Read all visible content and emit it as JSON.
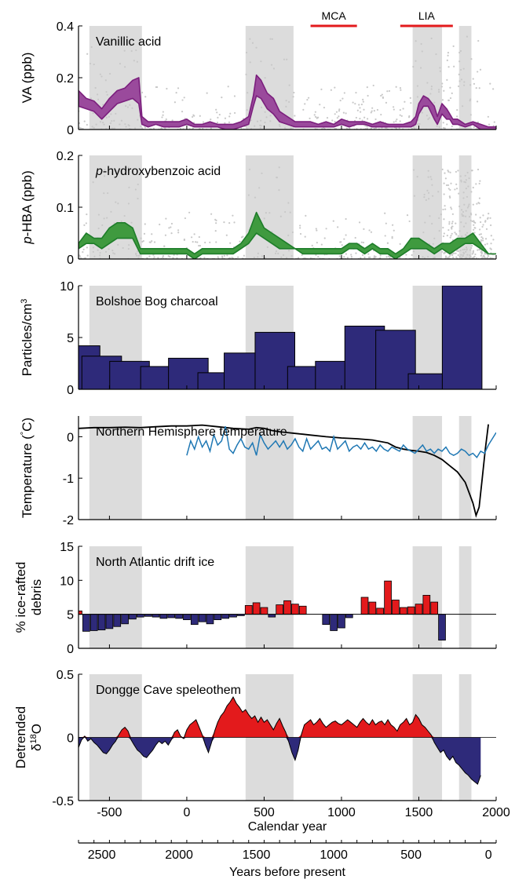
{
  "x_axis": {
    "label": "Calendar year",
    "range": [
      -700,
      2000
    ],
    "ticks": [
      -500,
      0,
      500,
      1000,
      1500,
      2000
    ],
    "tick_labels": [
      "-500",
      "0",
      "500",
      "1000",
      "1500",
      "2000"
    ]
  },
  "bp_axis": {
    "label": "Years before present",
    "ticks": [
      2500,
      2000,
      1500,
      1000,
      500,
      0
    ],
    "tick_labels": [
      "2500",
      "2000",
      "1500",
      "1000",
      "500",
      "0"
    ],
    "reference_year": 1950
  },
  "periods": [
    {
      "name": "MCA",
      "start": 800,
      "end": 1100,
      "color": "#e31a1c"
    },
    {
      "name": "LIA",
      "start": 1380,
      "end": 1720,
      "color": "#e31a1c"
    }
  ],
  "shaded_bands": [
    [
      -630,
      -290
    ],
    [
      380,
      690
    ],
    [
      1460,
      1650
    ],
    [
      1760,
      1840
    ]
  ],
  "colors": {
    "band": "#dcdcdc",
    "va": "#7b1f7d",
    "va_fill": "#9a4a9c",
    "hba": "#1e7d2a",
    "hba_fill": "#3f9a3f",
    "charcoal": "#2e2a7a",
    "temp_black": "#000000",
    "temp_blue": "#1f78b4",
    "positive": "#e31a1c",
    "negative": "#2e2a7a",
    "scatter": "#c8c8c8"
  },
  "chart_data": [
    {
      "type": "area",
      "title": "Vanillic acid",
      "ylabel": "VA (ppb)",
      "ylim": [
        0,
        0.4
      ],
      "yticks": [
        0,
        0.2,
        0.4
      ],
      "ytick_labels": [
        "0",
        "0.2",
        "0.4"
      ],
      "x": [
        -700,
        -650,
        -600,
        -550,
        -500,
        -450,
        -400,
        -350,
        -310,
        -290,
        -250,
        -200,
        -150,
        -100,
        -50,
        0,
        50,
        100,
        150,
        200,
        250,
        300,
        350,
        400,
        430,
        450,
        480,
        520,
        560,
        600,
        650,
        700,
        750,
        800,
        850,
        900,
        950,
        1000,
        1050,
        1100,
        1150,
        1200,
        1250,
        1300,
        1350,
        1400,
        1450,
        1480,
        1500,
        1530,
        1560,
        1600,
        1620,
        1650,
        1680,
        1700,
        1720,
        1750,
        1800,
        1850,
        1900,
        1950,
        2000
      ],
      "lower": [
        0.09,
        0.08,
        0.07,
        0.04,
        0.07,
        0.1,
        0.11,
        0.12,
        0.1,
        0.02,
        0.01,
        0.02,
        0.01,
        0.01,
        0.01,
        0.02,
        0.01,
        0.01,
        0.01,
        0.01,
        0.0,
        0.0,
        0.01,
        0.02,
        0.09,
        0.13,
        0.12,
        0.08,
        0.06,
        0.03,
        0.02,
        0.01,
        0.01,
        0.01,
        0.01,
        0.01,
        0.01,
        0.02,
        0.01,
        0.02,
        0.02,
        0.01,
        0.01,
        0.01,
        0.01,
        0.01,
        0.01,
        0.02,
        0.06,
        0.09,
        0.09,
        0.04,
        0.02,
        0.06,
        0.04,
        0.04,
        0.02,
        0.02,
        0.01,
        0.02,
        0.0,
        0.0,
        0.0
      ],
      "upper": [
        0.15,
        0.12,
        0.11,
        0.08,
        0.12,
        0.15,
        0.16,
        0.19,
        0.2,
        0.05,
        0.03,
        0.03,
        0.03,
        0.03,
        0.03,
        0.04,
        0.02,
        0.02,
        0.03,
        0.02,
        0.02,
        0.02,
        0.03,
        0.05,
        0.13,
        0.21,
        0.19,
        0.14,
        0.12,
        0.07,
        0.05,
        0.03,
        0.03,
        0.03,
        0.02,
        0.03,
        0.02,
        0.04,
        0.03,
        0.03,
        0.03,
        0.02,
        0.03,
        0.02,
        0.02,
        0.02,
        0.03,
        0.05,
        0.1,
        0.13,
        0.12,
        0.09,
        0.05,
        0.1,
        0.08,
        0.06,
        0.04,
        0.04,
        0.02,
        0.03,
        0.02,
        0.01,
        0.01
      ]
    },
    {
      "type": "area",
      "title": "p-hydroxybenzoic acid",
      "title_italic": "p",
      "title_rest": "-hydroxybenzoic acid",
      "ylabel": "p-HBA (ppb)",
      "ylabel_italic": "p",
      "ylabel_rest": "-HBA (ppb)",
      "ylim": [
        0,
        0.2
      ],
      "yticks": [
        0,
        0.1,
        0.2
      ],
      "ytick_labels": [
        "0",
        "0.1",
        "0.2"
      ],
      "x": [
        -700,
        -650,
        -600,
        -550,
        -500,
        -450,
        -400,
        -350,
        -300,
        -250,
        -200,
        -150,
        -100,
        -50,
        0,
        50,
        100,
        150,
        200,
        250,
        300,
        350,
        400,
        450,
        500,
        550,
        600,
        650,
        700,
        750,
        800,
        850,
        900,
        950,
        1000,
        1050,
        1100,
        1150,
        1200,
        1250,
        1300,
        1350,
        1400,
        1450,
        1500,
        1550,
        1600,
        1650,
        1700,
        1750,
        1800,
        1850,
        1900,
        1950,
        2000
      ],
      "lower": [
        0.02,
        0.03,
        0.03,
        0.02,
        0.03,
        0.04,
        0.04,
        0.04,
        0.01,
        0.01,
        0.01,
        0.01,
        0.01,
        0.01,
        0.01,
        0.0,
        0.01,
        0.01,
        0.01,
        0.01,
        0.01,
        0.02,
        0.03,
        0.05,
        0.04,
        0.03,
        0.02,
        0.02,
        0.02,
        0.01,
        0.01,
        0.01,
        0.01,
        0.01,
        0.01,
        0.02,
        0.02,
        0.01,
        0.02,
        0.01,
        0.01,
        0.0,
        0.01,
        0.02,
        0.02,
        0.02,
        0.01,
        0.02,
        0.01,
        0.02,
        0.03,
        0.03,
        0.02,
        0.01,
        0.01
      ],
      "upper": [
        0.03,
        0.05,
        0.04,
        0.04,
        0.06,
        0.07,
        0.07,
        0.06,
        0.02,
        0.02,
        0.02,
        0.02,
        0.02,
        0.02,
        0.02,
        0.01,
        0.02,
        0.02,
        0.02,
        0.02,
        0.02,
        0.03,
        0.05,
        0.09,
        0.06,
        0.05,
        0.04,
        0.03,
        0.02,
        0.02,
        0.02,
        0.02,
        0.02,
        0.02,
        0.02,
        0.03,
        0.03,
        0.02,
        0.03,
        0.02,
        0.02,
        0.01,
        0.02,
        0.04,
        0.04,
        0.03,
        0.02,
        0.03,
        0.03,
        0.04,
        0.04,
        0.05,
        0.03,
        0.01,
        0.01
      ]
    },
    {
      "type": "bar",
      "title": "Bolshoe Bog charcoal",
      "ylabel": "Particles/cm3",
      "ylabel_main": "Particles/cm",
      "ylabel_sup": "3",
      "ylim": [
        0,
        10
      ],
      "yticks": [
        0,
        5,
        10
      ],
      "ytick_labels": [
        "0",
        "5",
        "10"
      ],
      "bars": [
        {
          "x": -690,
          "value": 4.2
        },
        {
          "x": -550,
          "value": 3.2
        },
        {
          "x": -370,
          "value": 2.7
        },
        {
          "x": -170,
          "value": 2.2
        },
        {
          "x": 10,
          "value": 3.0
        },
        {
          "x": 200,
          "value": 1.6
        },
        {
          "x": 370,
          "value": 3.5
        },
        {
          "x": 570,
          "value": 5.5
        },
        {
          "x": 780,
          "value": 2.2
        },
        {
          "x": 960,
          "value": 2.7
        },
        {
          "x": 1150,
          "value": 6.1
        },
        {
          "x": 1350,
          "value": 5.7
        },
        {
          "x": 1560,
          "value": 1.5
        },
        {
          "x": 1780,
          "value": 10
        }
      ]
    },
    {
      "type": "line",
      "title": "Northern Hemisphere temperature",
      "ylabel": "Temperature (°C)",
      "ylabel_main": "Temperature (",
      "ylabel_deg": "°",
      "ylabel_end": "C)",
      "ylim": [
        -2,
        0.5
      ],
      "yticks": [
        -2,
        -1,
        0
      ],
      "ytick_labels": [
        "-2",
        "-1",
        "0"
      ],
      "series": [
        {
          "color_key": "temp_black",
          "x": [
            -700,
            -600,
            -500,
            -400,
            -300,
            -200,
            -100,
            0,
            100,
            200,
            300,
            400,
            450,
            500,
            550,
            600,
            650,
            700,
            750,
            800,
            900,
            1000,
            1100,
            1200,
            1300,
            1350,
            1400,
            1450,
            1500,
            1550,
            1600,
            1650,
            1700,
            1750,
            1800,
            1830,
            1850,
            1870,
            1890,
            1910,
            1930,
            1950
          ],
          "y": [
            0.2,
            0.22,
            0.22,
            0.23,
            0.22,
            0.24,
            0.26,
            0.26,
            0.28,
            0.24,
            0.2,
            0.18,
            0.22,
            0.2,
            0.15,
            0.12,
            0.1,
            0.08,
            0.06,
            0.04,
            0.0,
            -0.03,
            -0.05,
            -0.08,
            -0.15,
            -0.25,
            -0.3,
            -0.33,
            -0.35,
            -0.38,
            -0.45,
            -0.55,
            -0.7,
            -0.85,
            -1.1,
            -1.4,
            -1.6,
            -1.9,
            -1.7,
            -1.0,
            -0.3,
            0.3
          ]
        },
        {
          "color_key": "temp_blue",
          "x": [
            0,
            25,
            50,
            75,
            100,
            125,
            150,
            175,
            200,
            225,
            250,
            275,
            300,
            325,
            350,
            375,
            400,
            425,
            450,
            475,
            500,
            525,
            550,
            575,
            600,
            625,
            650,
            675,
            700,
            725,
            750,
            775,
            800,
            825,
            850,
            875,
            900,
            925,
            950,
            975,
            1000,
            1025,
            1050,
            1075,
            1100,
            1125,
            1150,
            1175,
            1200,
            1225,
            1250,
            1275,
            1300,
            1325,
            1350,
            1375,
            1400,
            1425,
            1450,
            1475,
            1500,
            1525,
            1550,
            1575,
            1600,
            1625,
            1650,
            1675,
            1700,
            1725,
            1750,
            1775,
            1800,
            1825,
            1850,
            1875,
            1900,
            1925,
            1950,
            1975,
            2000
          ],
          "y": [
            -0.45,
            -0.1,
            -0.3,
            0.0,
            -0.25,
            -0.1,
            -0.35,
            0.05,
            -0.2,
            -0.1,
            0.25,
            -0.3,
            -0.4,
            -0.2,
            -0.05,
            -0.25,
            -0.3,
            -0.15,
            -0.45,
            0.05,
            -0.15,
            -0.3,
            -0.2,
            -0.1,
            -0.25,
            -0.1,
            -0.3,
            -0.2,
            -0.05,
            -0.25,
            -0.35,
            -0.05,
            -0.3,
            -0.2,
            -0.1,
            -0.3,
            -0.25,
            -0.35,
            0.0,
            -0.3,
            -0.2,
            -0.1,
            -0.35,
            -0.25,
            -0.2,
            -0.3,
            -0.15,
            -0.3,
            -0.25,
            -0.35,
            -0.2,
            -0.3,
            -0.35,
            -0.25,
            -0.3,
            -0.35,
            -0.2,
            -0.3,
            -0.35,
            -0.4,
            -0.3,
            -0.2,
            -0.35,
            -0.3,
            -0.4,
            -0.3,
            -0.35,
            -0.25,
            -0.4,
            -0.45,
            -0.4,
            -0.3,
            -0.35,
            -0.45,
            -0.4,
            -0.5,
            -0.35,
            -0.4,
            -0.2,
            -0.05,
            0.1
          ]
        }
      ]
    },
    {
      "type": "bar",
      "title": "North Atlantic drift ice",
      "ylabel": "% ice-rafted debris",
      "ylabel_line1": "% ice-rafted",
      "ylabel_line2": "debris",
      "ylim": [
        0,
        15
      ],
      "yticks": [
        0,
        5,
        10,
        15
      ],
      "ytick_labels": [
        "0",
        "5",
        "10",
        "15"
      ],
      "baseline": 5,
      "bar_width_years": 45,
      "x": [
        -700,
        -650,
        -600,
        -550,
        -500,
        -450,
        -400,
        -350,
        -300,
        -250,
        -200,
        -150,
        -100,
        -50,
        0,
        50,
        100,
        150,
        200,
        250,
        300,
        350,
        400,
        450,
        500,
        550,
        600,
        650,
        700,
        750,
        800,
        850,
        900,
        950,
        1000,
        1050,
        1100,
        1150,
        1200,
        1250,
        1300,
        1350,
        1400,
        1450,
        1500,
        1550,
        1600,
        1650,
        1700,
        1750,
        1800,
        1850,
        1900,
        1950
      ],
      "values": [
        5.5,
        2.5,
        2.6,
        2.7,
        2.9,
        3.2,
        3.6,
        4.3,
        4.6,
        4.7,
        4.6,
        4.4,
        4.5,
        4.4,
        4.2,
        3.5,
        3.9,
        3.6,
        4.2,
        4.4,
        4.6,
        4.8,
        6.3,
        6.7,
        6.0,
        4.6,
        6.4,
        7.0,
        6.5,
        6.2,
        5.0,
        5.0,
        3.5,
        2.6,
        3.0,
        4.5,
        5.0,
        7.5,
        6.8,
        5.9,
        9.9,
        7.1,
        6.0,
        6.1,
        6.5,
        7.8,
        6.8,
        1.2,
        5.0,
        5.0,
        5.0,
        5.0,
        5.0,
        5.0
      ]
    },
    {
      "type": "area",
      "title": "Dongge Cave speleothem",
      "ylabel": "Detrended δ18O",
      "ylabel_line1": "Detrended",
      "ylabel_delta": "δ",
      "ylabel_sup": "18",
      "ylabel_end": "O",
      "ylim": [
        -0.5,
        0.5
      ],
      "yticks": [
        -0.5,
        0,
        0.5
      ],
      "ytick_labels": [
        "-0.5",
        "0",
        "0.5"
      ],
      "x": [
        -700,
        -680,
        -660,
        -640,
        -620,
        -600,
        -580,
        -560,
        -540,
        -520,
        -500,
        -480,
        -460,
        -440,
        -420,
        -400,
        -380,
        -360,
        -340,
        -320,
        -300,
        -280,
        -260,
        -240,
        -220,
        -200,
        -180,
        -160,
        -140,
        -120,
        -100,
        -80,
        -60,
        -40,
        -20,
        0,
        20,
        40,
        60,
        80,
        100,
        120,
        140,
        160,
        180,
        200,
        220,
        240,
        260,
        280,
        300,
        320,
        340,
        360,
        380,
        400,
        420,
        440,
        460,
        480,
        500,
        520,
        540,
        560,
        580,
        600,
        620,
        640,
        660,
        680,
        700,
        720,
        740,
        760,
        780,
        800,
        820,
        840,
        860,
        880,
        900,
        920,
        940,
        960,
        980,
        1000,
        1020,
        1040,
        1060,
        1080,
        1100,
        1120,
        1140,
        1160,
        1180,
        1200,
        1220,
        1240,
        1260,
        1280,
        1300,
        1320,
        1340,
        1360,
        1380,
        1400,
        1420,
        1440,
        1460,
        1480,
        1500,
        1520,
        1540,
        1560,
        1580,
        1600,
        1620,
        1640,
        1660,
        1680,
        1700,
        1720,
        1740,
        1760,
        1780,
        1800,
        1820,
        1840,
        1860,
        1880,
        1900
      ],
      "y": [
        -0.08,
        -0.02,
        0.01,
        -0.03,
        -0.01,
        -0.04,
        -0.06,
        -0.09,
        -0.12,
        -0.13,
        -0.1,
        -0.06,
        -0.03,
        0.02,
        0.06,
        0.08,
        0.05,
        -0.02,
        -0.06,
        -0.1,
        -0.12,
        -0.15,
        -0.16,
        -0.13,
        -0.1,
        -0.06,
        -0.03,
        -0.05,
        -0.03,
        -0.06,
        -0.02,
        0.04,
        0.06,
        0.01,
        -0.01,
        0.06,
        0.1,
        0.12,
        0.14,
        0.08,
        0.02,
        -0.06,
        -0.12,
        -0.04,
        0.05,
        0.12,
        0.17,
        0.2,
        0.25,
        0.28,
        0.32,
        0.27,
        0.24,
        0.2,
        0.22,
        0.18,
        0.15,
        0.17,
        0.12,
        0.16,
        0.12,
        0.14,
        0.1,
        0.06,
        0.11,
        0.15,
        0.09,
        0.04,
        -0.04,
        -0.12,
        -0.18,
        -0.1,
        0.02,
        0.1,
        0.12,
        0.14,
        0.1,
        0.12,
        0.15,
        0.11,
        0.08,
        0.1,
        0.12,
        0.13,
        0.11,
        0.1,
        0.12,
        0.14,
        0.12,
        0.1,
        0.08,
        0.12,
        0.15,
        0.12,
        0.1,
        0.14,
        0.1,
        0.12,
        0.13,
        0.1,
        0.14,
        0.1,
        0.08,
        0.05,
        0.1,
        0.12,
        0.15,
        0.1,
        0.12,
        0.18,
        0.15,
        0.1,
        0.08,
        0.05,
        0.02,
        -0.04,
        -0.08,
        -0.12,
        -0.1,
        -0.15,
        -0.18,
        -0.15,
        -0.2,
        -0.22,
        -0.25,
        -0.28,
        -0.3,
        -0.33,
        -0.35,
        -0.37,
        -0.3
      ]
    }
  ]
}
